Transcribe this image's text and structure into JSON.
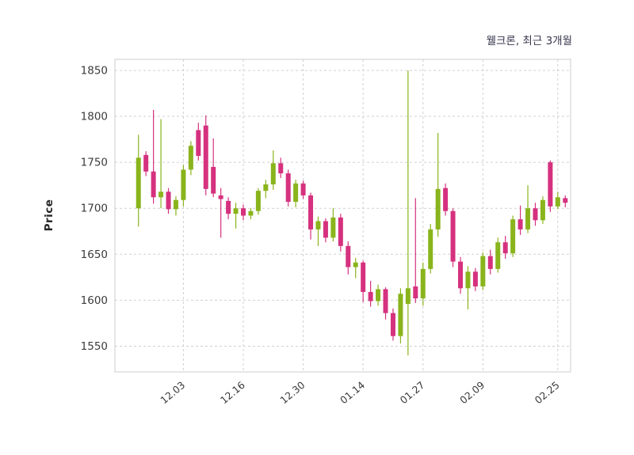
{
  "header": {
    "title": "웰크론, 최근 3개월"
  },
  "chart_data": {
    "type": "candlestick",
    "title": "웰크론, 최근 3개월",
    "ylabel": "Price",
    "ylim": [
      1522,
      1862
    ],
    "yticks": [
      1550,
      1600,
      1650,
      1700,
      1750,
      1800,
      1850
    ],
    "xticks": [
      {
        "label": "12.03",
        "index": 6
      },
      {
        "label": "12.16",
        "index": 14
      },
      {
        "label": "12.30",
        "index": 22
      },
      {
        "label": "01.14",
        "index": 30
      },
      {
        "label": "01.27",
        "index": 38
      },
      {
        "label": "02.09",
        "index": 46
      },
      {
        "label": "02.25",
        "index": 56
      }
    ],
    "grid": true,
    "legend": "none",
    "up_color": "#8ab41c",
    "down_color": "#d5317e",
    "grid_color": "#d0d0d0",
    "axis_border_color": "#cccccc",
    "tick_label_color": "#3a3a3a",
    "ohlc": [
      [
        1700,
        1780,
        1680,
        1755
      ],
      [
        1758,
        1762,
        1735,
        1740
      ],
      [
        1740,
        1807,
        1705,
        1712
      ],
      [
        1712,
        1797,
        1700,
        1718
      ],
      [
        1718,
        1722,
        1694,
        1699
      ],
      [
        1699,
        1713,
        1692,
        1709
      ],
      [
        1709,
        1747,
        1702,
        1742
      ],
      [
        1742,
        1773,
        1736,
        1768
      ],
      [
        1785,
        1793,
        1752,
        1757
      ],
      [
        1790,
        1801,
        1714,
        1721
      ],
      [
        1745,
        1776,
        1712,
        1716
      ],
      [
        1714,
        1722,
        1668,
        1710
      ],
      [
        1708,
        1712,
        1688,
        1694
      ],
      [
        1694,
        1706,
        1678,
        1700
      ],
      [
        1700,
        1704,
        1687,
        1692
      ],
      [
        1692,
        1700,
        1688,
        1697
      ],
      [
        1697,
        1722,
        1693,
        1719
      ],
      [
        1719,
        1731,
        1711,
        1726
      ],
      [
        1726,
        1763,
        1720,
        1749
      ],
      [
        1749,
        1755,
        1733,
        1738
      ],
      [
        1738,
        1742,
        1702,
        1707
      ],
      [
        1707,
        1731,
        1701,
        1727
      ],
      [
        1727,
        1730,
        1710,
        1714
      ],
      [
        1714,
        1717,
        1666,
        1677
      ],
      [
        1677,
        1691,
        1659,
        1686
      ],
      [
        1686,
        1689,
        1663,
        1668
      ],
      [
        1668,
        1700,
        1664,
        1690
      ],
      [
        1690,
        1694,
        1653,
        1659
      ],
      [
        1659,
        1664,
        1628,
        1636
      ],
      [
        1636,
        1646,
        1624,
        1641
      ],
      [
        1641,
        1643,
        1598,
        1609
      ],
      [
        1609,
        1621,
        1593,
        1599
      ],
      [
        1599,
        1617,
        1594,
        1612
      ],
      [
        1612,
        1614,
        1579,
        1586
      ],
      [
        1586,
        1591,
        1556,
        1561
      ],
      [
        1561,
        1613,
        1553,
        1607
      ],
      [
        1596,
        1850,
        1540,
        1613
      ],
      [
        1615,
        1711,
        1597,
        1602
      ],
      [
        1602,
        1641,
        1594,
        1634
      ],
      [
        1634,
        1683,
        1629,
        1677
      ],
      [
        1677,
        1782,
        1669,
        1721
      ],
      [
        1722,
        1727,
        1692,
        1697
      ],
      [
        1697,
        1700,
        1636,
        1642
      ],
      [
        1642,
        1647,
        1607,
        1613
      ],
      [
        1613,
        1637,
        1590,
        1631
      ],
      [
        1631,
        1635,
        1610,
        1615
      ],
      [
        1615,
        1652,
        1611,
        1648
      ],
      [
        1648,
        1655,
        1628,
        1634
      ],
      [
        1634,
        1668,
        1630,
        1663
      ],
      [
        1663,
        1670,
        1645,
        1651
      ],
      [
        1651,
        1692,
        1647,
        1688
      ],
      [
        1688,
        1703,
        1671,
        1677
      ],
      [
        1677,
        1725,
        1673,
        1700
      ],
      [
        1700,
        1706,
        1681,
        1687
      ],
      [
        1687,
        1713,
        1683,
        1709
      ],
      [
        1750,
        1752,
        1696,
        1702
      ],
      [
        1702,
        1718,
        1699,
        1712
      ],
      [
        1711,
        1714,
        1701,
        1706
      ]
    ]
  }
}
